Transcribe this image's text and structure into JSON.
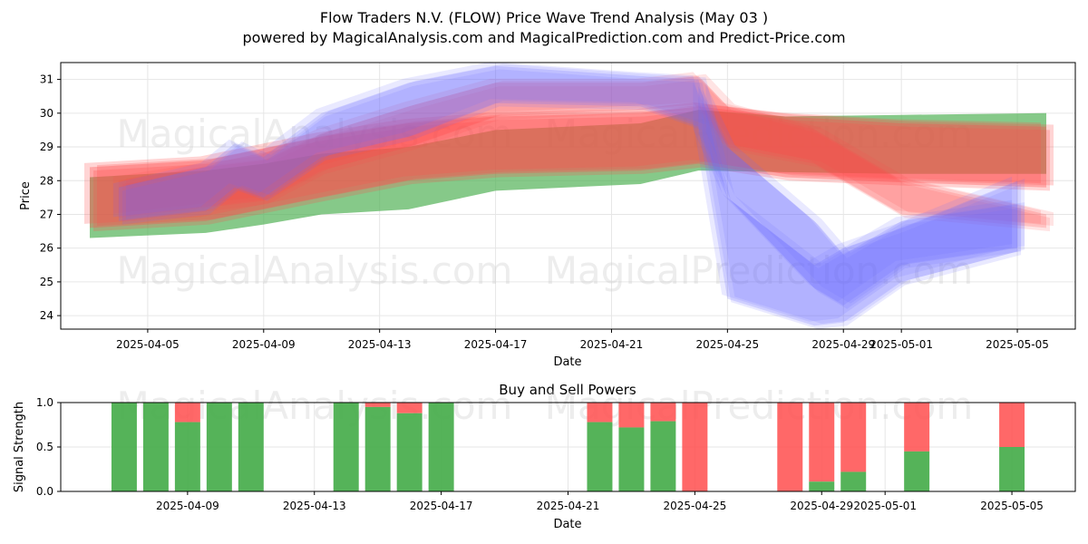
{
  "chart_data": [
    {
      "type": "area",
      "title": "Flow Traders N.V. (FLOW) Price Wave Trend Analysis (May 03 )",
      "subtitle": "powered by MagicalAnalysis.com and MagicalPrediction.com and Predict-Price.com",
      "xlabel": "Date",
      "ylabel": "Price",
      "xlim": [
        "2025-04-02",
        "2025-05-07"
      ],
      "ylim": [
        23.6,
        31.5
      ],
      "x_ticks": [
        "2025-04-05",
        "2025-04-09",
        "2025-04-13",
        "2025-04-17",
        "2025-04-21",
        "2025-04-25",
        "2025-04-29",
        "2025-05-01",
        "2025-05-05"
      ],
      "y_ticks": [
        24,
        25,
        26,
        27,
        28,
        29,
        30,
        31
      ],
      "grid": true,
      "watermarks": [
        "MagicalAnalysis.com",
        "MagicalPrediction.com",
        "MagicalAnalysis.com",
        "MagicalPrediction.com"
      ],
      "series": [
        {
          "name": "green band",
          "color": "#4caf50",
          "points": [
            {
              "x": "2025-04-03",
              "low": 26.3,
              "high": 28.1
            },
            {
              "x": "2025-04-07",
              "low": 26.45,
              "high": 28.3
            },
            {
              "x": "2025-04-09",
              "low": 26.7,
              "high": 28.5
            },
            {
              "x": "2025-04-11",
              "low": 27.0,
              "high": 28.8
            },
            {
              "x": "2025-04-14",
              "low": 27.15,
              "high": 29.0
            },
            {
              "x": "2025-04-17",
              "low": 27.7,
              "high": 29.5
            },
            {
              "x": "2025-04-22",
              "low": 27.9,
              "high": 29.7
            },
            {
              "x": "2025-04-24",
              "low": 28.3,
              "high": 30.1
            },
            {
              "x": "2025-04-27",
              "low": 28.25,
              "high": 29.9
            },
            {
              "x": "2025-05-01",
              "low": 28.2,
              "high": 29.95
            },
            {
              "x": "2025-05-06",
              "low": 28.2,
              "high": 30.0
            }
          ]
        },
        {
          "name": "red band wide",
          "color": "#ff4d4d",
          "points": [
            {
              "x": "2025-04-03",
              "low": 26.6,
              "high": 28.4
            },
            {
              "x": "2025-04-07",
              "low": 26.8,
              "high": 28.6
            },
            {
              "x": "2025-04-11",
              "low": 27.5,
              "high": 29.3
            },
            {
              "x": "2025-04-14",
              "low": 28.0,
              "high": 29.7
            },
            {
              "x": "2025-04-17",
              "low": 28.2,
              "high": 29.9
            },
            {
              "x": "2025-04-22",
              "low": 28.3,
              "high": 30.0
            },
            {
              "x": "2025-04-24",
              "low": 28.5,
              "high": 30.2
            },
            {
              "x": "2025-04-27",
              "low": 28.1,
              "high": 29.9
            },
            {
              "x": "2025-05-01",
              "low": 27.95,
              "high": 29.7
            },
            {
              "x": "2025-05-06",
              "low": 27.8,
              "high": 29.6
            }
          ]
        },
        {
          "name": "red band upper",
          "color": "#ff4d4d",
          "points": [
            {
              "x": "2025-04-04",
              "low": 26.9,
              "high": 28.0
            },
            {
              "x": "2025-04-07",
              "low": 27.2,
              "high": 28.4
            },
            {
              "x": "2025-04-09",
              "low": 27.4,
              "high": 28.6
            },
            {
              "x": "2025-04-11",
              "low": 28.3,
              "high": 29.4
            },
            {
              "x": "2025-04-14",
              "low": 29.0,
              "high": 30.2
            },
            {
              "x": "2025-04-17",
              "low": 29.9,
              "high": 30.9
            },
            {
              "x": "2025-04-22",
              "low": 30.1,
              "high": 30.9
            },
            {
              "x": "2025-04-24",
              "low": 30.2,
              "high": 31.1
            },
            {
              "x": "2025-04-25",
              "low": 29.0,
              "high": 30.2
            },
            {
              "x": "2025-04-28",
              "low": 28.5,
              "high": 29.5
            },
            {
              "x": "2025-05-01",
              "low": 27.0,
              "high": 28.0
            },
            {
              "x": "2025-05-06",
              "low": 26.6,
              "high": 27.0
            }
          ]
        },
        {
          "name": "blue band upper",
          "color": "#6b6bff",
          "points": [
            {
              "x": "2025-04-04",
              "low": 26.8,
              "high": 27.8
            },
            {
              "x": "2025-04-07",
              "low": 27.1,
              "high": 28.4
            },
            {
              "x": "2025-04-08",
              "low": 27.8,
              "high": 29.1
            },
            {
              "x": "2025-04-09",
              "low": 27.5,
              "high": 28.7
            },
            {
              "x": "2025-04-11",
              "low": 28.7,
              "high": 30.0
            },
            {
              "x": "2025-04-14",
              "low": 29.3,
              "high": 30.9
            },
            {
              "x": "2025-04-17",
              "low": 30.3,
              "high": 31.4
            },
            {
              "x": "2025-04-22",
              "low": 30.2,
              "high": 31.1
            },
            {
              "x": "2025-04-24",
              "low": 29.6,
              "high": 31.0
            },
            {
              "x": "2025-04-25",
              "low": 24.5,
              "high": 27.5
            },
            {
              "x": "2025-04-28",
              "low": 23.7,
              "high": 25.5
            },
            {
              "x": "2025-04-29",
              "low": 23.8,
              "high": 26.0
            },
            {
              "x": "2025-05-01",
              "low": 25.0,
              "high": 26.6
            },
            {
              "x": "2025-05-05",
              "low": 25.9,
              "high": 28.0
            }
          ]
        },
        {
          "name": "blue band lower",
          "color": "#6b6bff",
          "points": [
            {
              "x": "2025-04-24",
              "low": 29.4,
              "high": 30.8
            },
            {
              "x": "2025-04-25",
              "low": 27.5,
              "high": 29.0
            },
            {
              "x": "2025-04-28",
              "low": 24.8,
              "high": 26.8
            },
            {
              "x": "2025-04-29",
              "low": 24.3,
              "high": 25.8
            },
            {
              "x": "2025-05-01",
              "low": 25.5,
              "high": 26.8
            },
            {
              "x": "2025-05-05",
              "low": 26.0,
              "high": 27.3
            }
          ]
        }
      ]
    },
    {
      "type": "bar",
      "title": "Buy and Sell Powers",
      "xlabel": "Date",
      "ylabel": "Signal Strength",
      "ylim": [
        0.0,
        1.0
      ],
      "y_ticks": [
        "0.0",
        "0.5",
        "1.0"
      ],
      "x_ticks": [
        "2025-04-09",
        "2025-04-13",
        "2025-04-17",
        "2025-04-21",
        "2025-04-25",
        "2025-04-29",
        "2025-05-01",
        "2025-05-05"
      ],
      "colors": {
        "buy": "#4caf50",
        "sell": "#ff4d4d"
      },
      "bars": [
        {
          "x": "2025-04-07",
          "buy": 1.0
        },
        {
          "x": "2025-04-08",
          "buy": 1.0
        },
        {
          "x": "2025-04-09",
          "buy": 0.78
        },
        {
          "x": "2025-04-10",
          "buy": 1.0
        },
        {
          "x": "2025-04-11",
          "buy": 1.0
        },
        {
          "x": "2025-04-14",
          "buy": 1.0
        },
        {
          "x": "2025-04-15",
          "buy": 0.95
        },
        {
          "x": "2025-04-16",
          "buy": 0.88
        },
        {
          "x": "2025-04-17",
          "buy": 1.0
        },
        {
          "x": "2025-04-22",
          "buy": 0.78
        },
        {
          "x": "2025-04-23",
          "buy": 0.72
        },
        {
          "x": "2025-04-24",
          "buy": 0.79
        },
        {
          "x": "2025-04-25",
          "buy": 0.0
        },
        {
          "x": "2025-04-28",
          "buy": 0.0
        },
        {
          "x": "2025-04-29",
          "buy": 0.11
        },
        {
          "x": "2025-04-30",
          "buy": 0.22
        },
        {
          "x": "2025-05-02",
          "buy": 0.45
        },
        {
          "x": "2025-05-05",
          "buy": 0.5
        }
      ]
    }
  ]
}
